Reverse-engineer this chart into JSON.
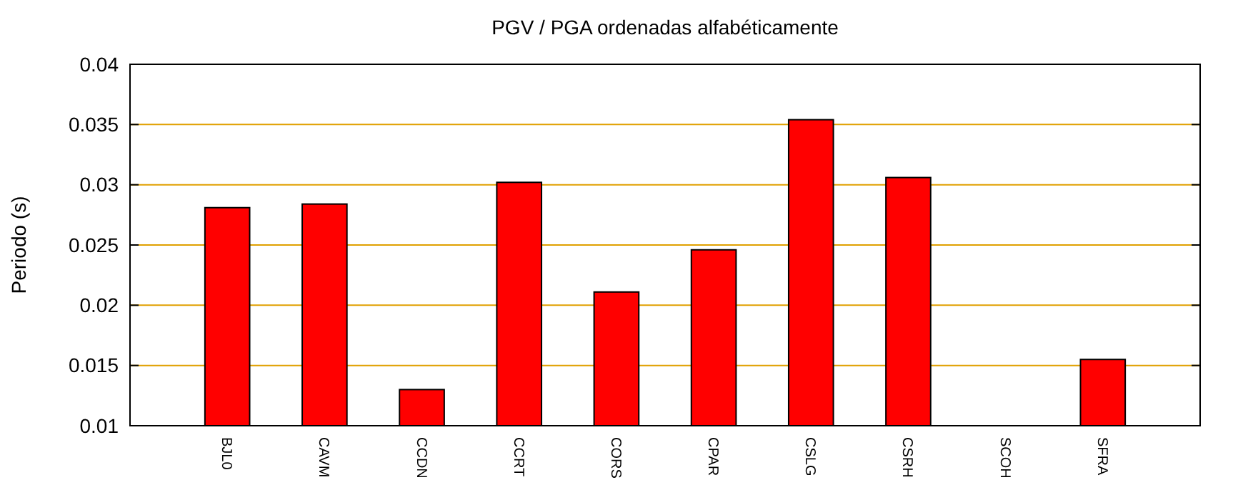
{
  "chart_data": {
    "type": "bar",
    "title": "PGV / PGA ordenadas alfabéticamente",
    "ylabel": "Periodo (s)",
    "categories": [
      "BJL0",
      "CAVM",
      "CCDN",
      "CCRT",
      "CORS",
      "CPAR",
      "CSLG",
      "CSRH",
      "SCOH",
      "SFRA"
    ],
    "values": [
      0.0281,
      0.0284,
      0.013,
      0.0302,
      0.0211,
      0.0246,
      0.0354,
      0.0306,
      null,
      0.0155
    ],
    "color": "#ff0000",
    "ylim": [
      0.01,
      0.04
    ],
    "yticks": [
      0.01,
      0.015,
      0.02,
      0.025,
      0.03,
      0.035,
      0.04
    ],
    "grid": "y"
  }
}
